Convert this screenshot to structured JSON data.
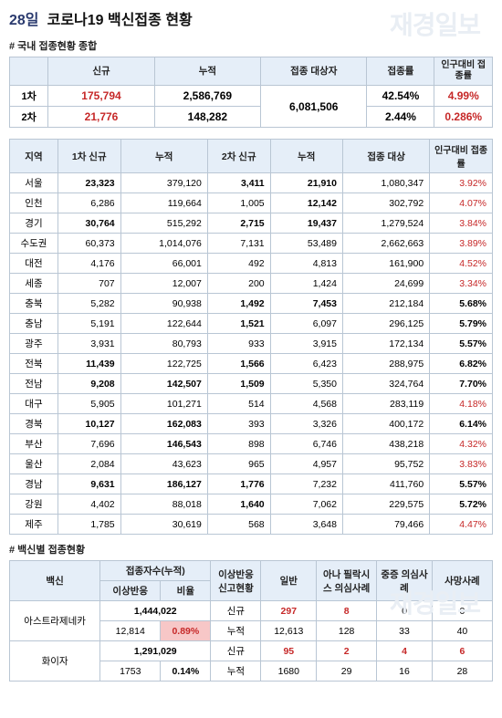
{
  "watermark": "재경일보",
  "title": {
    "day": "28일",
    "rest": "코로나19 백신접종 현황"
  },
  "sections": {
    "summary": "# 국내 접종현황 종합",
    "region": "",
    "vaccine": "# 백신별 접종현황"
  },
  "summary": {
    "headers": {
      "new": "신규",
      "cum": "누적",
      "target": "접종 대상자",
      "rate": "접종률",
      "pop_rate": "인구대비\n접종률"
    },
    "row_labels": {
      "d1": "1차",
      "d2": "2차"
    },
    "d1": {
      "new": "175,794",
      "cum": "2,586,769",
      "rate": "42.54%",
      "pop": "4.99%"
    },
    "d2": {
      "new": "21,776",
      "cum": "148,282",
      "rate": "2.44%",
      "pop": "0.286%"
    },
    "target": "6,081,506"
  },
  "region_headers": {
    "region": "지역",
    "d1new": "1차 신규",
    "d1cum": "누적",
    "d2new": "2차 신규",
    "d2cum": "누적",
    "target": "접종 대상",
    "pop_rate": "인구대비\n접종률"
  },
  "regions": [
    {
      "n": "서울",
      "d1n": "23,323",
      "d1c": "379,120",
      "d2n": "3,411",
      "d2c": "21,910",
      "tg": "1,080,347",
      "pr": "3.92%",
      "red": true,
      "b1": true,
      "b2": true,
      "b3": true
    },
    {
      "n": "인천",
      "d1n": "6,286",
      "d1c": "119,664",
      "d2n": "1,005",
      "d2c": "12,142",
      "tg": "302,792",
      "pr": "4.07%",
      "red": true,
      "b3": true
    },
    {
      "n": "경기",
      "d1n": "30,764",
      "d1c": "515,292",
      "d2n": "2,715",
      "d2c": "19,437",
      "tg": "1,279,524",
      "pr": "3.84%",
      "red": true,
      "b1": true,
      "b2": true,
      "b3": true
    },
    {
      "n": "수도권",
      "d1n": "60,373",
      "d1c": "1,014,076",
      "d2n": "7,131",
      "d2c": "53,489",
      "tg": "2,662,663",
      "pr": "3.89%",
      "red": true,
      "sub": true
    },
    {
      "n": "대전",
      "d1n": "4,176",
      "d1c": "66,001",
      "d2n": "492",
      "d2c": "4,813",
      "tg": "161,900",
      "pr": "4.52%",
      "red": true
    },
    {
      "n": "세종",
      "d1n": "707",
      "d1c": "12,007",
      "d2n": "200",
      "d2c": "1,424",
      "tg": "24,699",
      "pr": "3.34%",
      "red": true
    },
    {
      "n": "충북",
      "d1n": "5,282",
      "d1c": "90,938",
      "d2n": "1,492",
      "d2c": "7,453",
      "tg": "212,184",
      "pr": "5.68%",
      "b2": true,
      "b3": true,
      "bpr": true
    },
    {
      "n": "충남",
      "d1n": "5,191",
      "d1c": "122,644",
      "d2n": "1,521",
      "d2c": "6,097",
      "tg": "296,125",
      "pr": "5.79%",
      "b2": true,
      "bpr": true
    },
    {
      "n": "광주",
      "d1n": "3,931",
      "d1c": "80,793",
      "d2n": "933",
      "d2c": "3,915",
      "tg": "172,134",
      "pr": "5.57%",
      "bpr": true
    },
    {
      "n": "전북",
      "d1n": "11,439",
      "d1c": "122,725",
      "d2n": "1,566",
      "d2c": "6,423",
      "tg": "288,975",
      "pr": "6.82%",
      "b1": true,
      "b2": true,
      "bpr": true
    },
    {
      "n": "전남",
      "d1n": "9,208",
      "d1c": "142,507",
      "d2n": "1,509",
      "d2c": "5,350",
      "tg": "324,764",
      "pr": "7.70%",
      "b1": true,
      "b1c": true,
      "b2": true,
      "bpr": true
    },
    {
      "n": "대구",
      "d1n": "5,905",
      "d1c": "101,271",
      "d2n": "514",
      "d2c": "4,568",
      "tg": "283,119",
      "pr": "4.18%",
      "red": true
    },
    {
      "n": "경북",
      "d1n": "10,127",
      "d1c": "162,083",
      "d2n": "393",
      "d2c": "3,326",
      "tg": "400,172",
      "pr": "6.14%",
      "b1": true,
      "b1c": true,
      "bpr": true
    },
    {
      "n": "부산",
      "d1n": "7,696",
      "d1c": "146,543",
      "d2n": "898",
      "d2c": "6,746",
      "tg": "438,218",
      "pr": "4.32%",
      "b1c": true,
      "red": true
    },
    {
      "n": "울산",
      "d1n": "2,084",
      "d1c": "43,623",
      "d2n": "965",
      "d2c": "4,957",
      "tg": "95,752",
      "pr": "3.83%",
      "red": true
    },
    {
      "n": "경남",
      "d1n": "9,631",
      "d1c": "186,127",
      "d2n": "1,776",
      "d2c": "7,232",
      "tg": "411,760",
      "pr": "5.57%",
      "b1": true,
      "b1c": true,
      "b2": true,
      "bpr": true
    },
    {
      "n": "강원",
      "d1n": "4,402",
      "d1c": "88,018",
      "d2n": "1,640",
      "d2c": "7,062",
      "tg": "229,575",
      "pr": "5.72%",
      "b2": true,
      "bpr": true
    },
    {
      "n": "제주",
      "d1n": "1,785",
      "d1c": "30,619",
      "d2n": "568",
      "d2c": "3,648",
      "tg": "79,466",
      "pr": "4.47%",
      "red": true
    }
  ],
  "vaccine": {
    "headers": {
      "name": "백신",
      "cum": "접종자수(누적)",
      "adv": "이상반응",
      "ratio": "비율",
      "report": "이상반응\n신고현황",
      "gen": "일반",
      "ana": "아나\n필락시스\n의심사례",
      "sev": "중증\n의심사례",
      "death": "사망사례"
    },
    "rows": [
      {
        "name": "아스트라제네카",
        "cum": "1,444,022",
        "adv": "12,814",
        "ratio": "0.89%",
        "new_label": "신규",
        "cum_label": "누적",
        "new": {
          "gen": "297",
          "ana": "8",
          "sev": "0",
          "death": "0"
        },
        "acc": {
          "gen": "12,613",
          "ana": "128",
          "sev": "33",
          "death": "40"
        },
        "hl_ratio": true
      },
      {
        "name": "화이자",
        "cum": "1,291,029",
        "adv": "1753",
        "ratio": "0.14%",
        "new_label": "신규",
        "cum_label": "누적",
        "new": {
          "gen": "95",
          "ana": "2",
          "sev": "4",
          "death": "6"
        },
        "acc": {
          "gen": "1680",
          "ana": "29",
          "sev": "16",
          "death": "28"
        }
      }
    ]
  }
}
